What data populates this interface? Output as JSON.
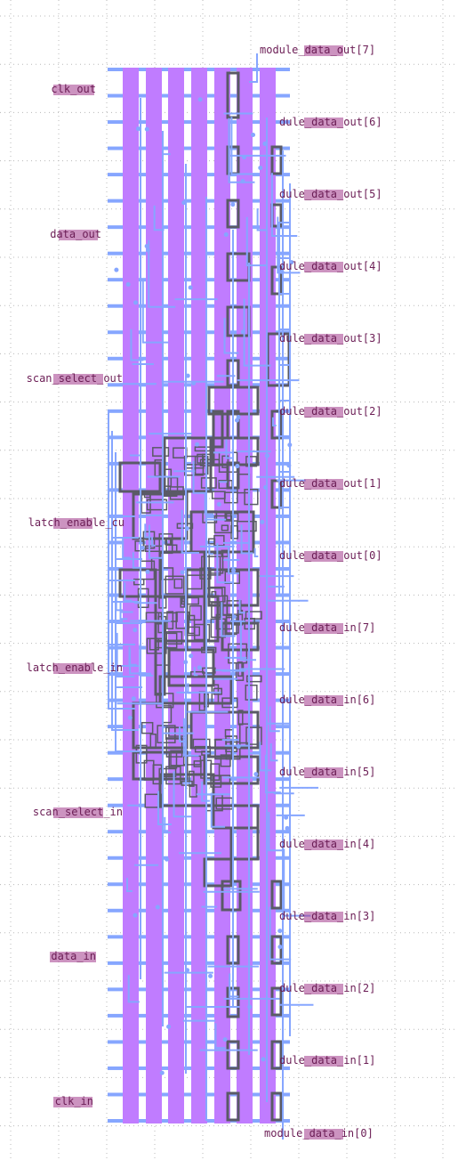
{
  "left_pins": [
    {
      "id": "clk_out",
      "label": "clk_out"
    },
    {
      "id": "data_out",
      "label": "data_out"
    },
    {
      "id": "scan_select_out",
      "label": "scan_select_out"
    },
    {
      "id": "latch_enable_out",
      "label": "latch_enable_cu"
    },
    {
      "id": "latch_enable_in",
      "label": "latch_enable_in"
    },
    {
      "id": "scan_select_in",
      "label": "scan_select_in"
    },
    {
      "id": "data_in",
      "label": "data_in"
    },
    {
      "id": "clk_in",
      "label": "clk_in"
    }
  ],
  "right_pins": [
    {
      "id": "module_data_out_7",
      "label": "module_data_out[7]"
    },
    {
      "id": "module_data_out_6",
      "label": "dule_data_out[6]"
    },
    {
      "id": "module_data_out_5",
      "label": "dule_data_out[5]"
    },
    {
      "id": "module_data_out_4",
      "label": "dule_data_out[4]"
    },
    {
      "id": "module_data_out_3",
      "label": "dule_data_out[3]"
    },
    {
      "id": "module_data_out_2",
      "label": "dule_data_out[2]"
    },
    {
      "id": "module_data_out_1",
      "label": "dule_data_out[1]"
    },
    {
      "id": "module_data_out_0",
      "label": "dule_data_out[0]"
    },
    {
      "id": "module_data_in_7",
      "label": "dule_data_in[7]"
    },
    {
      "id": "module_data_in_6",
      "label": "dule_data_in[6]"
    },
    {
      "id": "module_data_in_5",
      "label": "dule_data_in[5]"
    },
    {
      "id": "module_data_in_4",
      "label": "dule_data_in[4]"
    },
    {
      "id": "module_data_in_3",
      "label": "dule_data_in[3]"
    },
    {
      "id": "module_data_in_2",
      "label": "dule_data_in[2]"
    },
    {
      "id": "module_data_in_1",
      "label": "dule_data_in[1]"
    },
    {
      "id": "module_data_in_0",
      "label": "module_data_in[0]"
    }
  ],
  "colors": {
    "background": "#ffffff",
    "grid_dot": "#b8b8b8",
    "power_stripe": "#c07cff",
    "metal_route": "#86a6ff",
    "cell_outline": "#5a5a66",
    "label_text": "#6b1d55",
    "label_scribble": "#a33a8c"
  }
}
